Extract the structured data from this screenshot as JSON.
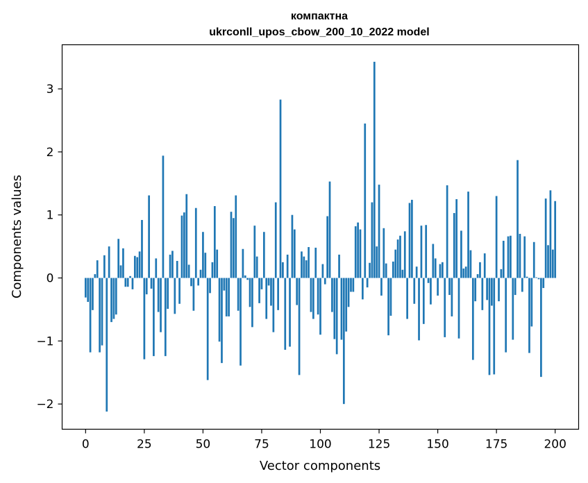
{
  "chart_data": {
    "type": "bar",
    "title_line1": "компактна",
    "title_line2": "ukrconll_upos_cbow_200_10_2022 model",
    "xlabel": "Vector components",
    "ylabel": "Components values",
    "xlim": [
      -10,
      210
    ],
    "ylim": [
      -2.4,
      3.7
    ],
    "xticks": [
      0,
      25,
      50,
      75,
      100,
      125,
      150,
      175,
      200
    ],
    "xtick_labels": [
      "0",
      "25",
      "50",
      "75",
      "100",
      "125",
      "150",
      "175",
      "200"
    ],
    "yticks": [
      -2,
      -1,
      0,
      1,
      2,
      3
    ],
    "ytick_labels": [
      "−2",
      "−1",
      "0",
      "1",
      "2",
      "3"
    ],
    "bar_color": "#1f77b4",
    "values": [
      -0.31,
      -0.38,
      -1.18,
      -0.51,
      0.06,
      0.28,
      -1.18,
      -1.07,
      0.36,
      -2.12,
      0.5,
      -0.7,
      -0.65,
      -0.58,
      0.62,
      0.2,
      0.47,
      -0.14,
      -0.14,
      0.03,
      -0.18,
      0.35,
      0.33,
      0.42,
      0.92,
      -1.29,
      -0.26,
      1.31,
      -0.17,
      -1.24,
      0.31,
      -0.54,
      -0.86,
      1.94,
      -1.24,
      -0.49,
      0.37,
      0.43,
      -0.57,
      0.27,
      -0.41,
      0.99,
      1.04,
      1.33,
      0.21,
      -0.13,
      -0.52,
      1.11,
      -0.12,
      0.13,
      0.73,
      0.4,
      -1.62,
      -0.24,
      0.25,
      1.14,
      0.45,
      -1.01,
      -1.35,
      -0.2,
      -0.61,
      -0.61,
      1.05,
      0.95,
      1.31,
      -0.52,
      -1.39,
      0.46,
      0.04,
      -0.03,
      -0.46,
      -0.78,
      0.83,
      0.34,
      -0.4,
      -0.18,
      0.73,
      -0.65,
      -0.12,
      -0.44,
      -0.86,
      1.2,
      -0.51,
      2.83,
      0.25,
      -1.14,
      0.37,
      -1.09,
      1.0,
      0.77,
      -0.43,
      -1.54,
      0.42,
      0.34,
      0.28,
      0.49,
      -0.54,
      -0.65,
      0.48,
      -0.58,
      -0.9,
      0.22,
      -0.1,
      0.98,
      1.53,
      -0.54,
      -0.97,
      -1.21,
      0.37,
      -0.98,
      -2.0,
      -0.85,
      -0.46,
      -0.22,
      -0.22,
      0.82,
      0.88,
      0.77,
      -0.34,
      2.45,
      -0.15,
      0.24,
      1.2,
      3.43,
      0.5,
      1.48,
      -0.28,
      0.79,
      0.23,
      -0.91,
      -0.6,
      0.26,
      0.45,
      0.61,
      0.67,
      0.13,
      0.74,
      -0.65,
      1.19,
      1.24,
      -0.41,
      0.18,
      -0.99,
      0.83,
      -0.73,
      0.84,
      -0.08,
      -0.42,
      0.54,
      0.31,
      -0.28,
      0.22,
      0.25,
      -0.94,
      1.47,
      -0.27,
      -0.61,
      1.03,
      1.25,
      -0.96,
      0.75,
      0.15,
      0.18,
      1.37,
      0.44,
      -1.3,
      -0.37,
      0.06,
      0.25,
      -0.51,
      0.39,
      -0.35,
      -1.54,
      -0.44,
      -1.53,
      1.3,
      -0.37,
      0.14,
      0.59,
      -1.18,
      0.66,
      0.67,
      -0.98,
      -0.27,
      1.87,
      0.7,
      -0.22,
      0.66,
      0.02,
      -1.19,
      -0.77,
      0.57,
      0.01,
      -0.02,
      -1.57,
      -0.16,
      1.26,
      0.52,
      1.39,
      0.45,
      1.22
    ]
  }
}
